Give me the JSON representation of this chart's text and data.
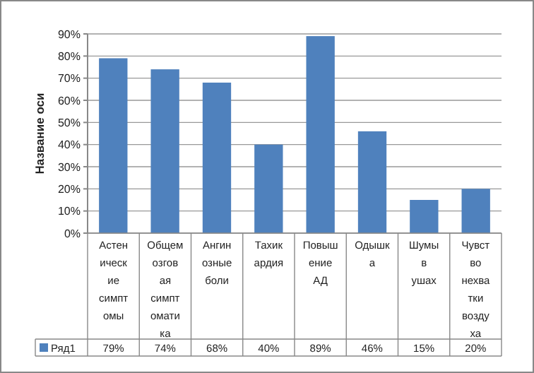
{
  "chart_data": {
    "type": "bar",
    "ylabel": "Название оси",
    "categories": [
      "Астенические симптомы",
      "Общемозговая симптоматика",
      "Ангинозные боли",
      "Тахикардия",
      "Повышение АД",
      "Одышка",
      "Шумы в ушах",
      "Чувство нехватки воздуха"
    ],
    "series": [
      {
        "name": "Ряд1",
        "color": "#4f81bd",
        "values": [
          79,
          74,
          68,
          40,
          89,
          46,
          15,
          20
        ],
        "value_labels": [
          "79%",
          "74%",
          "68%",
          "40%",
          "89%",
          "46%",
          "15%",
          "20%"
        ]
      }
    ],
    "ylim": [
      0,
      90
    ],
    "yticks": [
      {
        "value": 0,
        "label": "0%"
      },
      {
        "value": 10,
        "label": "10%"
      },
      {
        "value": 20,
        "label": "20%"
      },
      {
        "value": 30,
        "label": "30%"
      },
      {
        "value": 40,
        "label": "40%"
      },
      {
        "value": 50,
        "label": "50%"
      },
      {
        "value": 60,
        "label": "60%"
      },
      {
        "value": 70,
        "label": "70%"
      },
      {
        "value": 80,
        "label": "80%"
      },
      {
        "value": 90,
        "label": "90%"
      }
    ],
    "grid": true,
    "legend": "bottom left"
  }
}
